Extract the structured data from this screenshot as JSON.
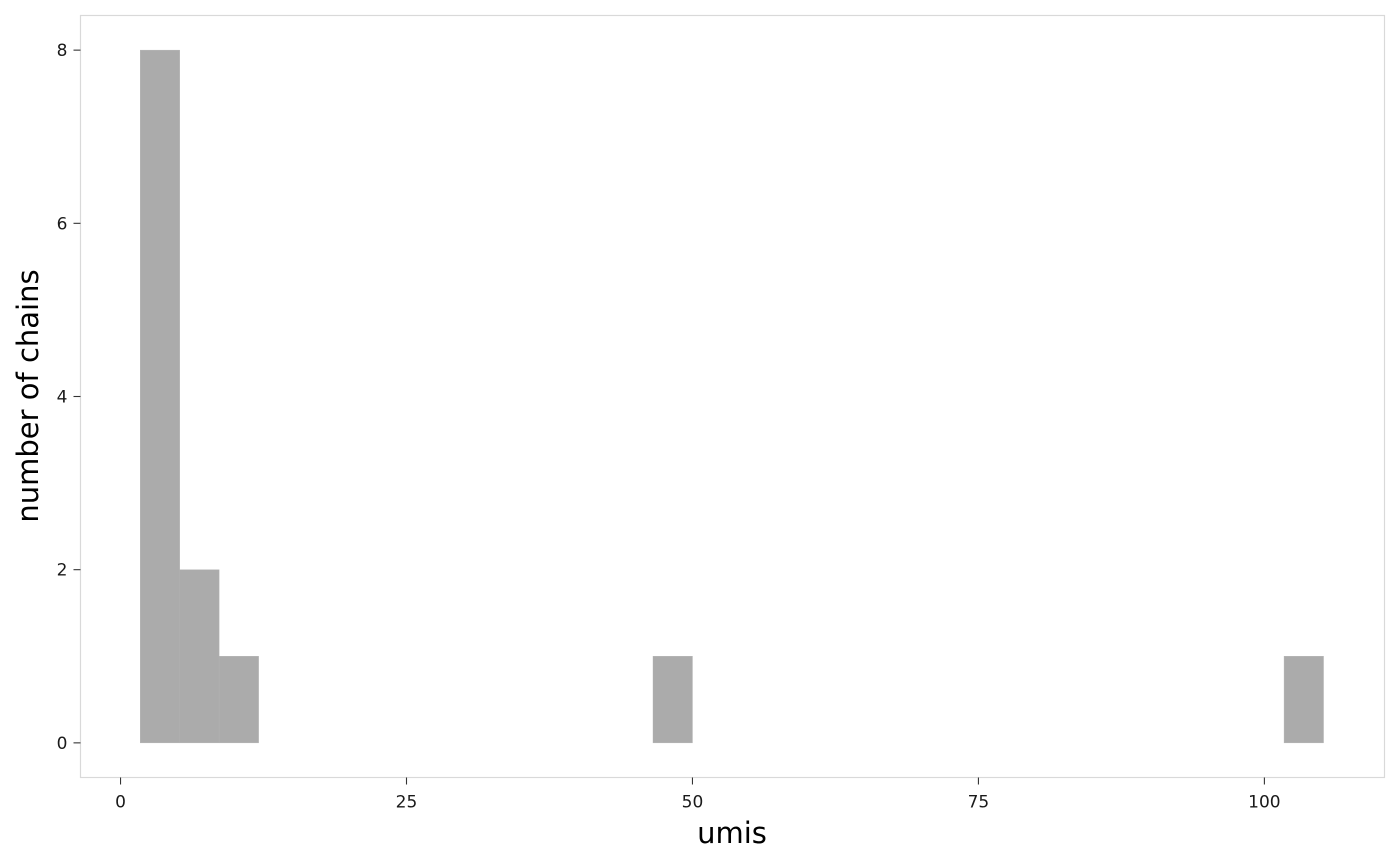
{
  "chart_data": {
    "type": "bar",
    "title": "",
    "xlabel": "umis",
    "ylabel": "number of chains",
    "xlim": [
      -3.5,
      110.5
    ],
    "ylim": [
      -0.4,
      8.4
    ],
    "x_ticks": [
      0,
      25,
      50,
      75,
      100
    ],
    "y_ticks": [
      0,
      2,
      4,
      6,
      8
    ],
    "grid": false,
    "legend": "none",
    "bar_color": "#ababab",
    "panel_border_color": "#d9d9d9",
    "bins": [
      {
        "x0": 1.72,
        "x1": 5.17,
        "value": 8
      },
      {
        "x0": 5.17,
        "x1": 8.62,
        "value": 2
      },
      {
        "x0": 8.62,
        "x1": 12.07,
        "value": 1
      },
      {
        "x0": 46.55,
        "x1": 50.0,
        "value": 1
      },
      {
        "x0": 101.72,
        "x1": 105.17,
        "value": 1
      }
    ]
  }
}
